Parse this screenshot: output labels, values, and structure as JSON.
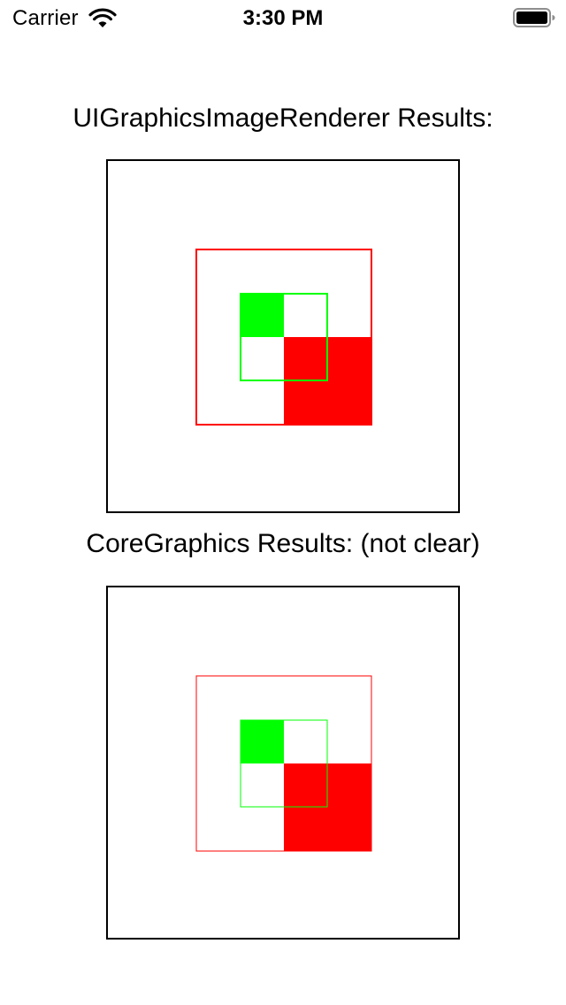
{
  "status_bar": {
    "carrier": "Carrier",
    "time": "3:30 PM"
  },
  "sections": [
    {
      "title": "UIGraphicsImageRenderer Results:"
    },
    {
      "title": "CoreGraphics Results: (not clear)"
    }
  ],
  "colors": {
    "red": "#ff0000",
    "green": "#00ff00",
    "frame": "#000000"
  }
}
